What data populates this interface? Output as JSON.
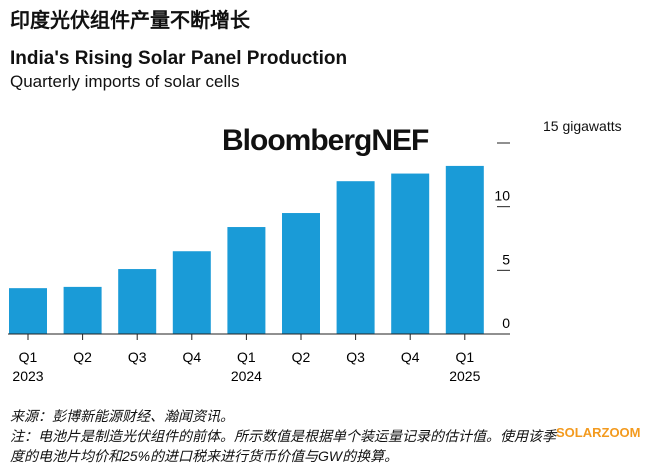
{
  "header": {
    "cn_title": "印度光伏组件产量不断增长",
    "title": "India's Rising Solar Panel Production",
    "subtitle": "Quarterly imports of solar cells",
    "logo": "BloombergNEF"
  },
  "chart_data": {
    "type": "bar",
    "title": "India's Rising Solar Panel Production",
    "ylabel": "15 gigawatts",
    "categories": [
      "Q1 2023",
      "Q2 2023",
      "Q3 2023",
      "Q4 2023",
      "Q1 2024",
      "Q2 2024",
      "Q3 2024",
      "Q4 2024",
      "Q1 2025"
    ],
    "tick_quarters": [
      "Q1",
      "Q2",
      "Q3",
      "Q4",
      "Q1",
      "Q2",
      "Q3",
      "Q4",
      "Q1"
    ],
    "tick_years": [
      "2023",
      "",
      "",
      "",
      "2024",
      "",
      "",
      "",
      "2025"
    ],
    "values": [
      3.6,
      3.7,
      5.1,
      6.5,
      8.4,
      9.5,
      12.0,
      12.6,
      13.2
    ],
    "ylim": [
      0,
      15
    ],
    "yticks": [
      "0",
      "5",
      "10"
    ],
    "ytick_values": [
      0,
      5,
      10,
      15
    ],
    "color": "#1a9bd7",
    "grid": false
  },
  "footer": {
    "source": "来源：彭博新能源财经、瀚闻资讯。",
    "note1": "注：电池片是制造光伏组件的前体。所示数值是根据单个装运量记录的估计值。使用该季",
    "note2": "度的电池片均价和25%的进口税来进行货币价值与GW的换算。",
    "watermark": "SOLARZOOM"
  }
}
